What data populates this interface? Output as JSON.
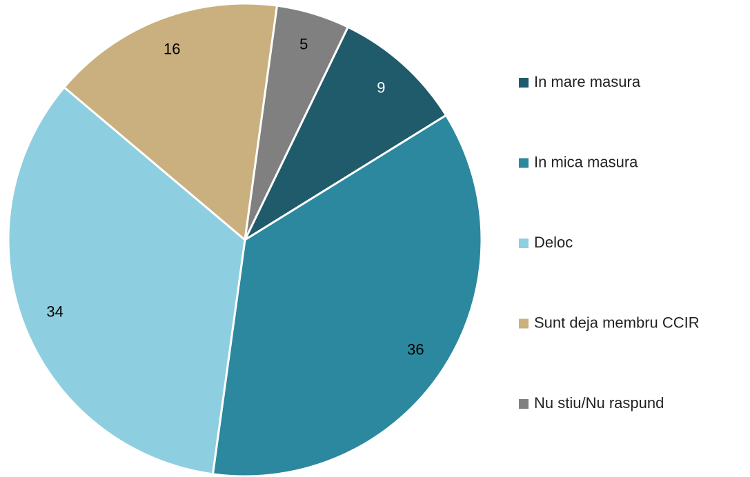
{
  "chart_data": {
    "type": "pie",
    "categories": [
      "In mare masura",
      "In mica masura",
      "Deloc",
      "Sunt deja membru CCIR",
      "Nu stiu/Nu raspund"
    ],
    "values": [
      9,
      36,
      34,
      16,
      5
    ],
    "colors": [
      "#1f5b6b",
      "#2b889e",
      "#8dcfe0",
      "#c9b07e",
      "#808080"
    ],
    "legend": "right"
  }
}
